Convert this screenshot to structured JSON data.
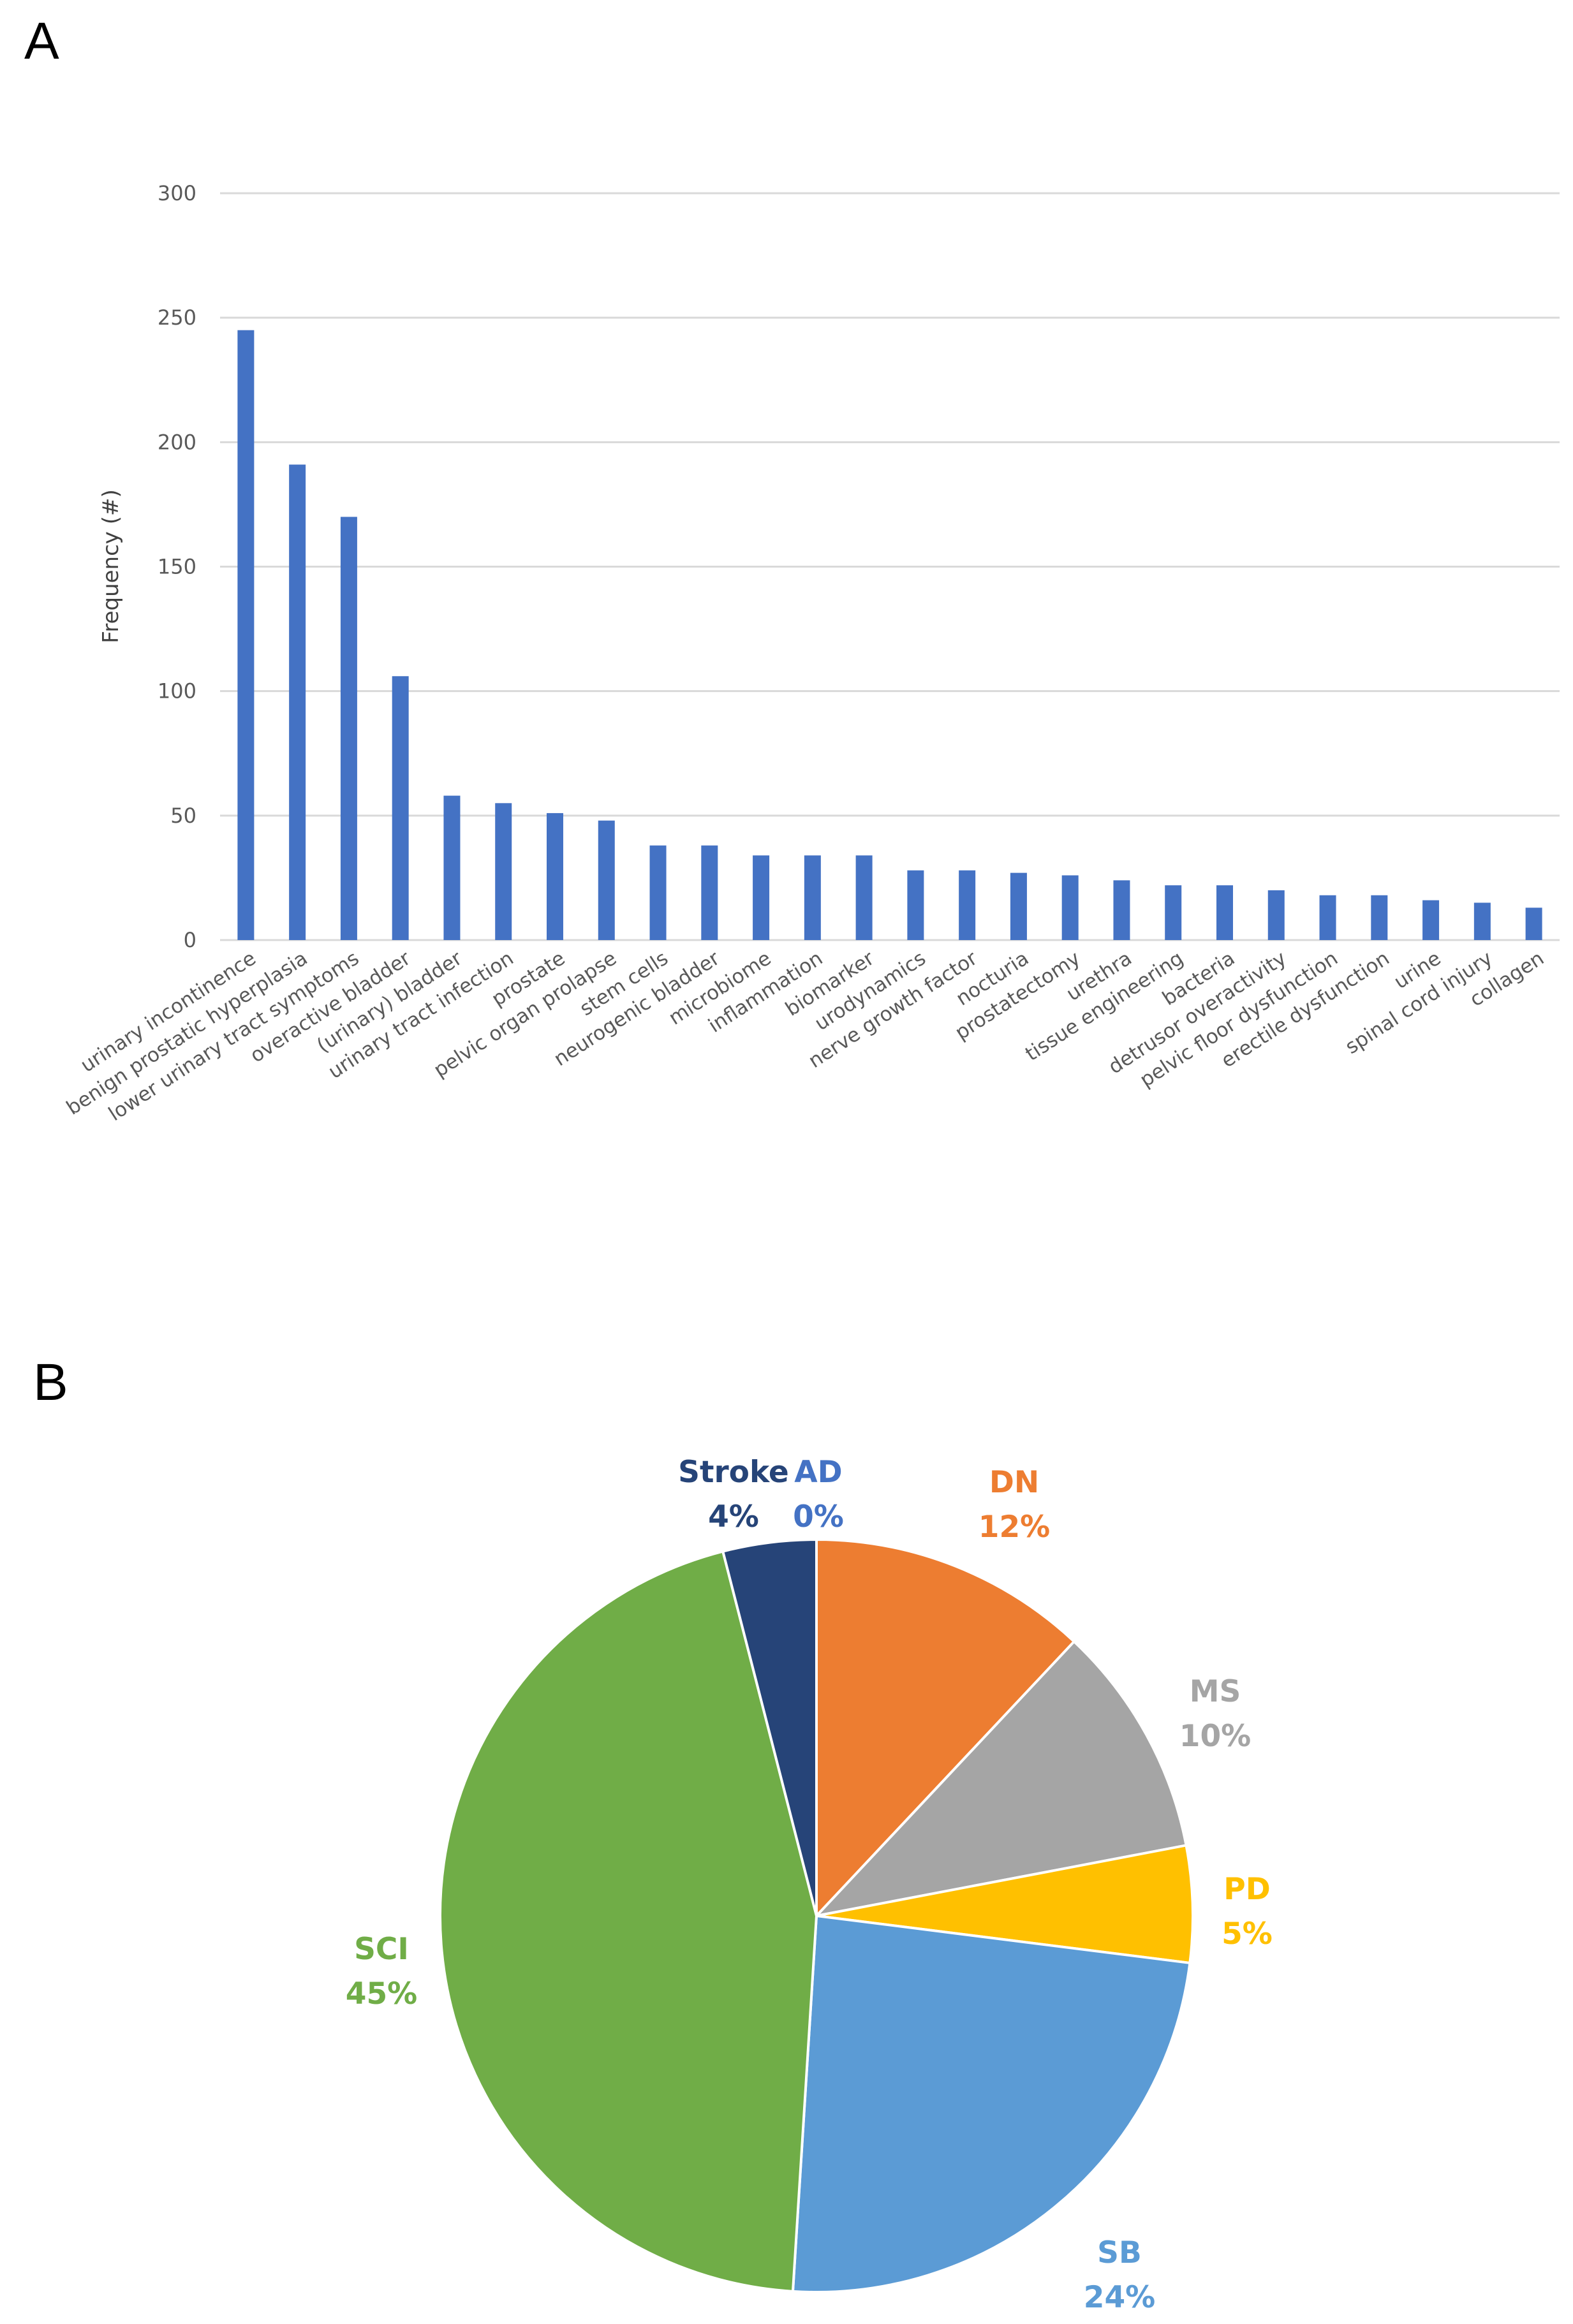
{
  "panel_labels": {
    "a": "A",
    "b": "B"
  },
  "colors": {
    "bar": "#4472C4",
    "grid": "#D9D9D9",
    "axis_text": "#595959"
  },
  "chart_data": [
    {
      "type": "bar",
      "title": "",
      "xlabel": "",
      "ylabel": "Frequency (#)",
      "ylim": [
        0,
        300
      ],
      "yticks": [
        0,
        50,
        100,
        150,
        200,
        250,
        300
      ],
      "grid": true,
      "categories": [
        "urinary incontinence",
        "benign prostatic hyperplasia",
        "lower urinary tract symptoms",
        "overactive bladder",
        "(urinary) bladder",
        "urinary tract infection",
        "prostate",
        "pelvic organ prolapse",
        "stem cells",
        "neurogenic bladder",
        "microbiome",
        "inflammation",
        "biomarker",
        "urodynamics",
        "nerve growth factor",
        "nocturia",
        "prostatectomy",
        "urethra",
        "tissue engineering",
        "bacteria",
        "detrusor overactivity",
        "pelvic floor dysfunction",
        "erectile dysfunction",
        "urine",
        "spinal cord injury",
        "collagen"
      ],
      "values": [
        245,
        191,
        170,
        106,
        58,
        55,
        51,
        48,
        38,
        38,
        34,
        34,
        34,
        28,
        28,
        27,
        26,
        24,
        22,
        22,
        20,
        18,
        18,
        16,
        15,
        13
      ]
    },
    {
      "type": "pie",
      "title": "",
      "slices": [
        {
          "label": "AD",
          "value": 0,
          "pct_label": "0%",
          "color": "#4472C4"
        },
        {
          "label": "DN",
          "value": 12,
          "pct_label": "12%",
          "color": "#ED7D31"
        },
        {
          "label": "MS",
          "value": 10,
          "pct_label": "10%",
          "color": "#A5A5A5"
        },
        {
          "label": "PD",
          "value": 5,
          "pct_label": "5%",
          "color": "#FFC000"
        },
        {
          "label": "SB",
          "value": 24,
          "pct_label": "24%",
          "color": "#5B9BD5"
        },
        {
          "label": "SCI",
          "value": 45,
          "pct_label": "45%",
          "color": "#70AD47"
        },
        {
          "label": "Stroke",
          "value": 4,
          "pct_label": "4%",
          "color": "#264478"
        }
      ]
    }
  ]
}
